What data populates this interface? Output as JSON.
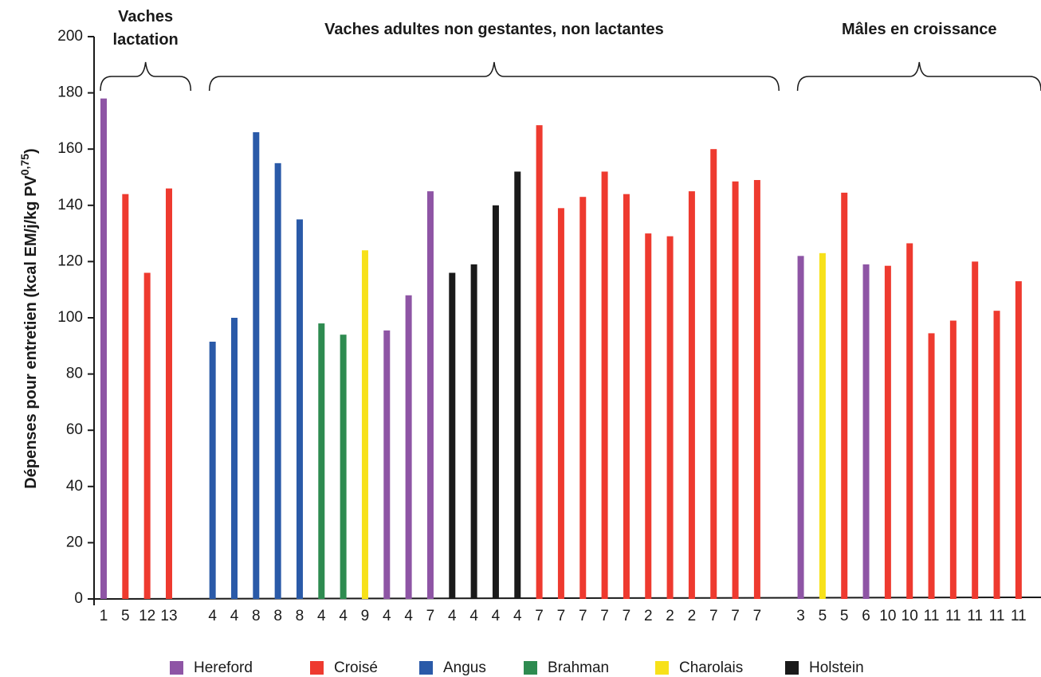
{
  "chart_data": {
    "type": "bar",
    "y_label": {
      "text": "Dépenses pour entretien (kcal EM/j/kg PV",
      "sup": "0,75",
      "end": ")"
    },
    "groups": [
      [
        "Vaches",
        "lactation"
      ],
      [
        "Vaches adultes non gestantes, non lactantes"
      ],
      [
        "Mâles en croissance"
      ]
    ],
    "categories": [
      "1",
      "5",
      "12",
      "13",
      null,
      "4",
      "4",
      "8",
      "8",
      "8",
      "4",
      "4",
      "9",
      "4",
      "4",
      "7",
      "4",
      "4",
      "4",
      "4",
      "7",
      "7",
      "7",
      "7",
      "7",
      "2",
      "2",
      "2",
      "7",
      "7",
      "7",
      null,
      "3",
      "5",
      "5",
      "6",
      "10",
      "10",
      "11",
      "11",
      "11",
      "11",
      "11"
    ],
    "series": [
      {
        "name": "Hereford",
        "color": "#8e55a5",
        "values": [
          178,
          null,
          null,
          null,
          null,
          null,
          null,
          null,
          null,
          null,
          null,
          null,
          null,
          95.5,
          108,
          145,
          null,
          null,
          null,
          null,
          null,
          null,
          null,
          null,
          null,
          null,
          null,
          null,
          null,
          null,
          null,
          null,
          122,
          null,
          null,
          119,
          null,
          null,
          null,
          null,
          null,
          null,
          null
        ]
      },
      {
        "name": "Croisé",
        "color": "#ee3a2f",
        "values": [
          null,
          144,
          116,
          146,
          null,
          null,
          null,
          null,
          null,
          null,
          null,
          null,
          null,
          null,
          null,
          null,
          null,
          null,
          null,
          null,
          168.5,
          139,
          143,
          152,
          144,
          130,
          129,
          145,
          160,
          148.5,
          149,
          null,
          null,
          null,
          144.5,
          null,
          118.5,
          126.5,
          94.5,
          99,
          120,
          102.5,
          113
        ]
      },
      {
        "name": "Angus",
        "color": "#2a5aa8",
        "values": [
          null,
          null,
          null,
          null,
          null,
          91.5,
          100,
          166,
          155,
          135,
          null,
          null,
          null,
          null,
          null,
          null,
          null,
          null,
          null,
          null,
          null,
          null,
          null,
          null,
          null,
          null,
          null,
          null,
          null,
          null,
          null,
          null,
          null,
          null,
          null,
          null,
          null,
          null,
          null,
          null,
          null,
          null,
          null
        ]
      },
      {
        "name": "Brahman",
        "color": "#2e8b50",
        "values": [
          null,
          null,
          null,
          null,
          null,
          null,
          null,
          null,
          null,
          null,
          98,
          94,
          null,
          null,
          null,
          null,
          null,
          null,
          null,
          null,
          null,
          null,
          null,
          null,
          null,
          null,
          null,
          null,
          null,
          null,
          null,
          null,
          null,
          null,
          null,
          null,
          null,
          null,
          null,
          null,
          null,
          null,
          null
        ]
      },
      {
        "name": "Charolais",
        "color": "#f7e11a",
        "values": [
          null,
          null,
          null,
          null,
          null,
          null,
          null,
          null,
          null,
          null,
          null,
          null,
          124,
          null,
          null,
          null,
          null,
          null,
          null,
          null,
          null,
          null,
          null,
          null,
          null,
          null,
          null,
          null,
          null,
          null,
          null,
          null,
          null,
          123,
          null,
          null,
          null,
          null,
          null,
          null,
          null,
          null,
          null
        ]
      },
      {
        "name": "Holstein",
        "color": "#1a1a1a",
        "values": [
          null,
          null,
          null,
          null,
          null,
          null,
          null,
          null,
          null,
          null,
          null,
          null,
          null,
          null,
          null,
          null,
          116,
          119,
          140,
          152,
          null,
          null,
          null,
          null,
          null,
          null,
          null,
          null,
          null,
          null,
          null,
          null,
          null,
          null,
          null,
          null,
          null,
          null,
          null,
          null,
          null,
          null,
          null
        ]
      }
    ],
    "ylim": [
      0,
      200
    ],
    "yticks": [
      0,
      20,
      40,
      60,
      80,
      100,
      120,
      140,
      160,
      180,
      200
    ],
    "grid": false
  }
}
